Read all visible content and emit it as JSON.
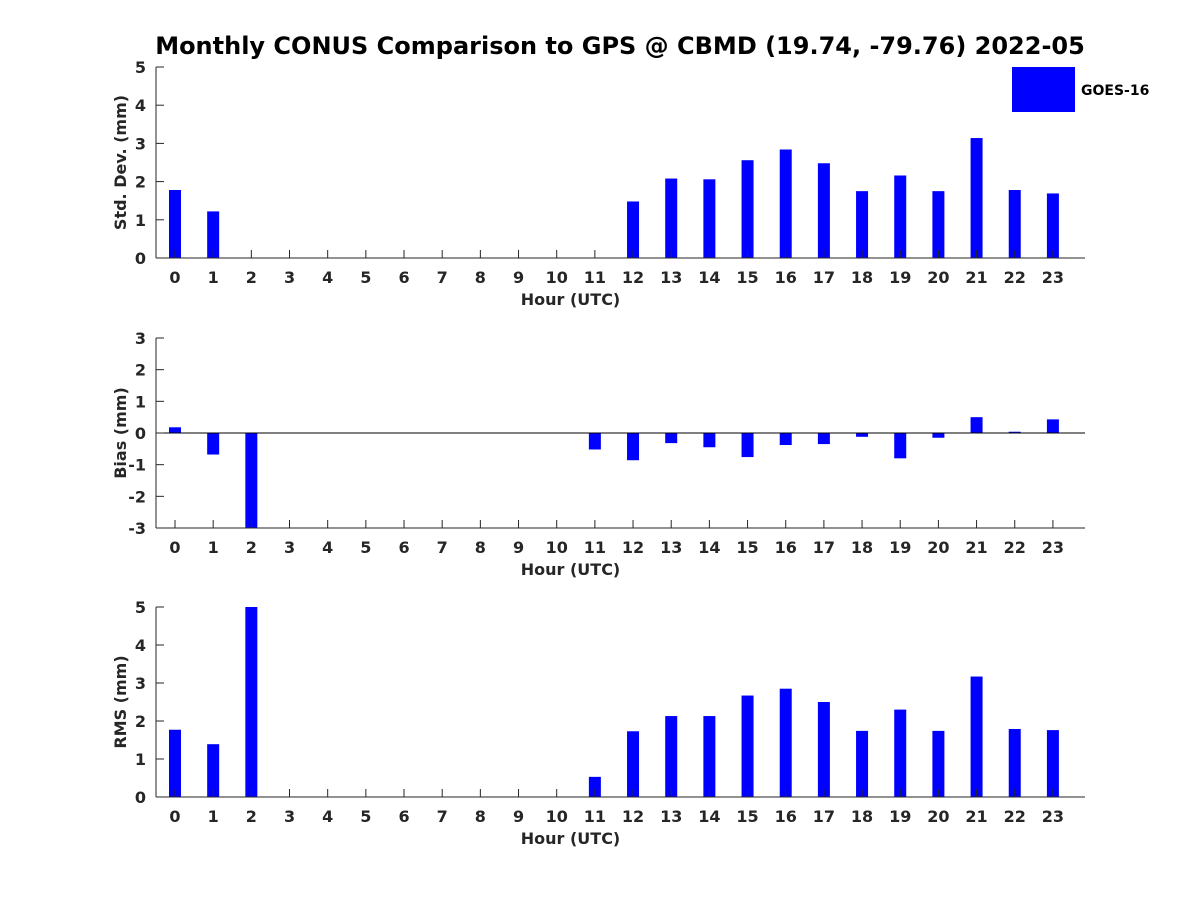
{
  "title": "Monthly CONUS Comparison to GPS @ CBMD (19.74, -79.76) 2022-05",
  "legend": {
    "label": "GOES-16",
    "color": "#0000ff",
    "position": "top-right"
  },
  "chart_data": [
    {
      "type": "bar",
      "series_name": "GOES-16",
      "xlabel": "Hour (UTC)",
      "ylabel": "Std. Dev. (mm)",
      "ylim": [
        0,
        5
      ],
      "yticks": [
        "0",
        "1",
        "2",
        "3",
        "4",
        "5"
      ],
      "categories": [
        "0",
        "1",
        "2",
        "3",
        "4",
        "5",
        "6",
        "7",
        "8",
        "9",
        "10",
        "11",
        "12",
        "13",
        "14",
        "15",
        "16",
        "17",
        "18",
        "19",
        "20",
        "21",
        "22",
        "23"
      ],
      "values": [
        1.78,
        1.22,
        null,
        null,
        null,
        null,
        null,
        null,
        null,
        null,
        null,
        null,
        1.48,
        2.08,
        2.06,
        2.56,
        2.84,
        2.48,
        1.75,
        2.16,
        1.75,
        3.14,
        1.78,
        1.69
      ]
    },
    {
      "type": "bar",
      "series_name": "GOES-16",
      "xlabel": "Hour (UTC)",
      "ylabel": "Bias (mm)",
      "ylim": [
        -3,
        3
      ],
      "yticks": [
        "-3",
        "-2",
        "-1",
        "0",
        "1",
        "2",
        "3"
      ],
      "categories": [
        "0",
        "1",
        "2",
        "3",
        "4",
        "5",
        "6",
        "7",
        "8",
        "9",
        "10",
        "11",
        "12",
        "13",
        "14",
        "15",
        "16",
        "17",
        "18",
        "19",
        "20",
        "21",
        "22",
        "23"
      ],
      "values": [
        0.18,
        -0.68,
        -3.0,
        null,
        null,
        null,
        null,
        null,
        null,
        null,
        null,
        -0.52,
        -0.86,
        -0.32,
        -0.45,
        -0.76,
        -0.38,
        -0.35,
        -0.12,
        -0.8,
        -0.15,
        0.5,
        0.04,
        0.43
      ]
    },
    {
      "type": "bar",
      "series_name": "GOES-16",
      "xlabel": "Hour (UTC)",
      "ylabel": "RMS (mm)",
      "ylim": [
        0,
        5
      ],
      "yticks": [
        "0",
        "1",
        "2",
        "3",
        "4",
        "5"
      ],
      "categories": [
        "0",
        "1",
        "2",
        "3",
        "4",
        "5",
        "6",
        "7",
        "8",
        "9",
        "10",
        "11",
        "12",
        "13",
        "14",
        "15",
        "16",
        "17",
        "18",
        "19",
        "20",
        "21",
        "22",
        "23"
      ],
      "values": [
        1.77,
        1.39,
        5.0,
        null,
        null,
        null,
        null,
        null,
        null,
        null,
        null,
        0.53,
        1.73,
        2.13,
        2.13,
        2.67,
        2.85,
        2.5,
        1.74,
        2.3,
        1.74,
        3.17,
        1.79,
        1.76
      ]
    }
  ]
}
